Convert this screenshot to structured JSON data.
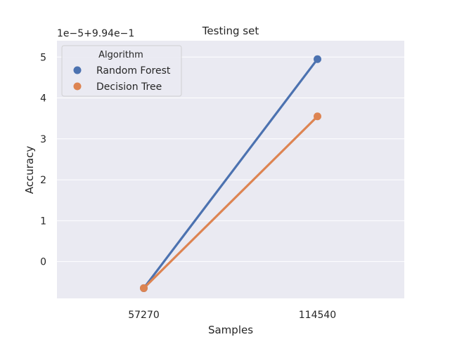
{
  "chart_data": {
    "type": "line",
    "title": "Testing set",
    "xlabel": "Samples",
    "ylabel": "Accuracy",
    "y_offset_label": "1e−5+9.94e−1",
    "categories": [
      "57270",
      "114540"
    ],
    "y_ticks": [
      0,
      1,
      2,
      3,
      4,
      5
    ],
    "y_tick_labels": [
      "0",
      "1",
      "2",
      "3",
      "4",
      "5"
    ],
    "ylim": [
      -0.9,
      5.4
    ],
    "grid": true,
    "legend": {
      "title": "Algorithm",
      "placement": "top-left"
    },
    "series": [
      {
        "name": "Random Forest",
        "color": "#4c72b0",
        "values": [
          -0.65,
          4.95
        ]
      },
      {
        "name": "Decision Tree",
        "color": "#dd8452",
        "values": [
          -0.65,
          3.55
        ]
      }
    ]
  },
  "colors": {
    "plot_background": "#eaeaf2",
    "grid": "#ffffff",
    "text": "#262626"
  }
}
